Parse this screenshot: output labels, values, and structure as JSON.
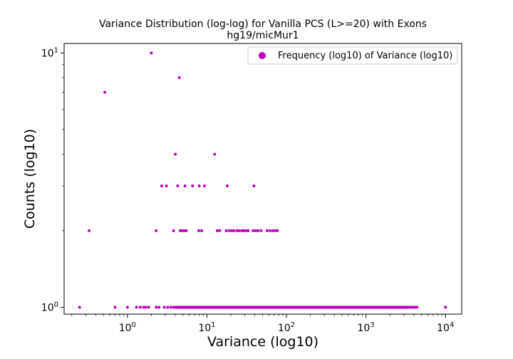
{
  "chart_data": {
    "type": "scatter",
    "title": "Variance Distribution (log-log) for Vanilla PCS (L>=20) with Exons",
    "subtitle": "hg19/micMur1",
    "xlabel": "Variance (log10)",
    "ylabel": "Counts (log10)",
    "x_scale": "log",
    "y_scale": "log",
    "xlim": [
      0.16,
      16000
    ],
    "ylim": [
      0.94,
      10.9
    ],
    "x_ticks": [
      {
        "value": 1,
        "base": "10",
        "exp": "0"
      },
      {
        "value": 10,
        "base": "10",
        "exp": "1"
      },
      {
        "value": 100,
        "base": "10",
        "exp": "2"
      },
      {
        "value": 1000,
        "base": "10",
        "exp": "3"
      },
      {
        "value": 10000,
        "base": "10",
        "exp": "4"
      }
    ],
    "y_ticks": [
      {
        "value": 1,
        "base": "10",
        "exp": "0"
      },
      {
        "value": 10,
        "base": "10",
        "exp": "1"
      }
    ],
    "legend": {
      "position": "top-right",
      "label": "Frequency (log10) of Variance (log10)"
    },
    "grid": false,
    "marker_color": "#bf00bf",
    "series": [
      {
        "name": "Frequency (log10) of Variance (log10)",
        "points": [
          {
            "x": 2.0,
            "y": 10
          },
          {
            "x": 4.5,
            "y": 8
          },
          {
            "x": 0.52,
            "y": 7
          },
          {
            "x": 4.0,
            "y": 4
          },
          {
            "x": 12.5,
            "y": 4
          },
          {
            "x": 2.7,
            "y": 3
          },
          {
            "x": 3.1,
            "y": 3
          },
          {
            "x": 4.3,
            "y": 3
          },
          {
            "x": 5.3,
            "y": 3
          },
          {
            "x": 6.6,
            "y": 3
          },
          {
            "x": 8.0,
            "y": 3
          },
          {
            "x": 9.3,
            "y": 3
          },
          {
            "x": 18,
            "y": 3
          },
          {
            "x": 39,
            "y": 3
          },
          {
            "x": 0.33,
            "y": 2
          },
          {
            "x": 2.3,
            "y": 2
          },
          {
            "x": 3.8,
            "y": 2
          },
          {
            "x": 4.6,
            "y": 2
          },
          {
            "x": 4.9,
            "y": 2
          },
          {
            "x": 5.2,
            "y": 2
          },
          {
            "x": 5.5,
            "y": 2
          },
          {
            "x": 7.9,
            "y": 2
          },
          {
            "x": 8.6,
            "y": 2
          },
          {
            "x": 13.5,
            "y": 2
          },
          {
            "x": 14.5,
            "y": 2
          },
          {
            "x": 17.5,
            "y": 2
          },
          {
            "x": 19,
            "y": 2
          },
          {
            "x": 20.5,
            "y": 2
          },
          {
            "x": 22,
            "y": 2
          },
          {
            "x": 24,
            "y": 2
          },
          {
            "x": 25.5,
            "y": 2
          },
          {
            "x": 27.5,
            "y": 2
          },
          {
            "x": 29,
            "y": 2
          },
          {
            "x": 31,
            "y": 2
          },
          {
            "x": 33,
            "y": 2
          },
          {
            "x": 38,
            "y": 2
          },
          {
            "x": 41,
            "y": 2
          },
          {
            "x": 44,
            "y": 2
          },
          {
            "x": 48,
            "y": 2
          },
          {
            "x": 57,
            "y": 2
          },
          {
            "x": 62,
            "y": 2
          },
          {
            "x": 67,
            "y": 2
          },
          {
            "x": 72,
            "y": 2
          },
          {
            "x": 77,
            "y": 2
          },
          {
            "x": 0.25,
            "y": 1
          },
          {
            "x": 0.7,
            "y": 1
          },
          {
            "x": 1.0,
            "y": 1
          },
          {
            "x": 1.3,
            "y": 1
          },
          {
            "x": 1.45,
            "y": 1
          },
          {
            "x": 1.6,
            "y": 1
          },
          {
            "x": 1.7,
            "y": 1
          },
          {
            "x": 1.85,
            "y": 1
          },
          {
            "x": 2.3,
            "y": 1
          },
          {
            "x": 2.5,
            "y": 1
          },
          {
            "x": 2.9,
            "y": 1
          },
          {
            "x": 3.2,
            "y": 1
          },
          {
            "x": 3.5,
            "y": 1
          },
          {
            "x": 3.8,
            "y": 1
          },
          {
            "x": 10000,
            "y": 1
          }
        ],
        "dense_ranges": [
          {
            "x_from": 4.0,
            "x_to": 3300,
            "y": 1,
            "points_per_decade": 90
          },
          {
            "x_from": 3300,
            "x_to": 4400,
            "y": 1,
            "points_per_decade": 40
          }
        ]
      }
    ]
  }
}
